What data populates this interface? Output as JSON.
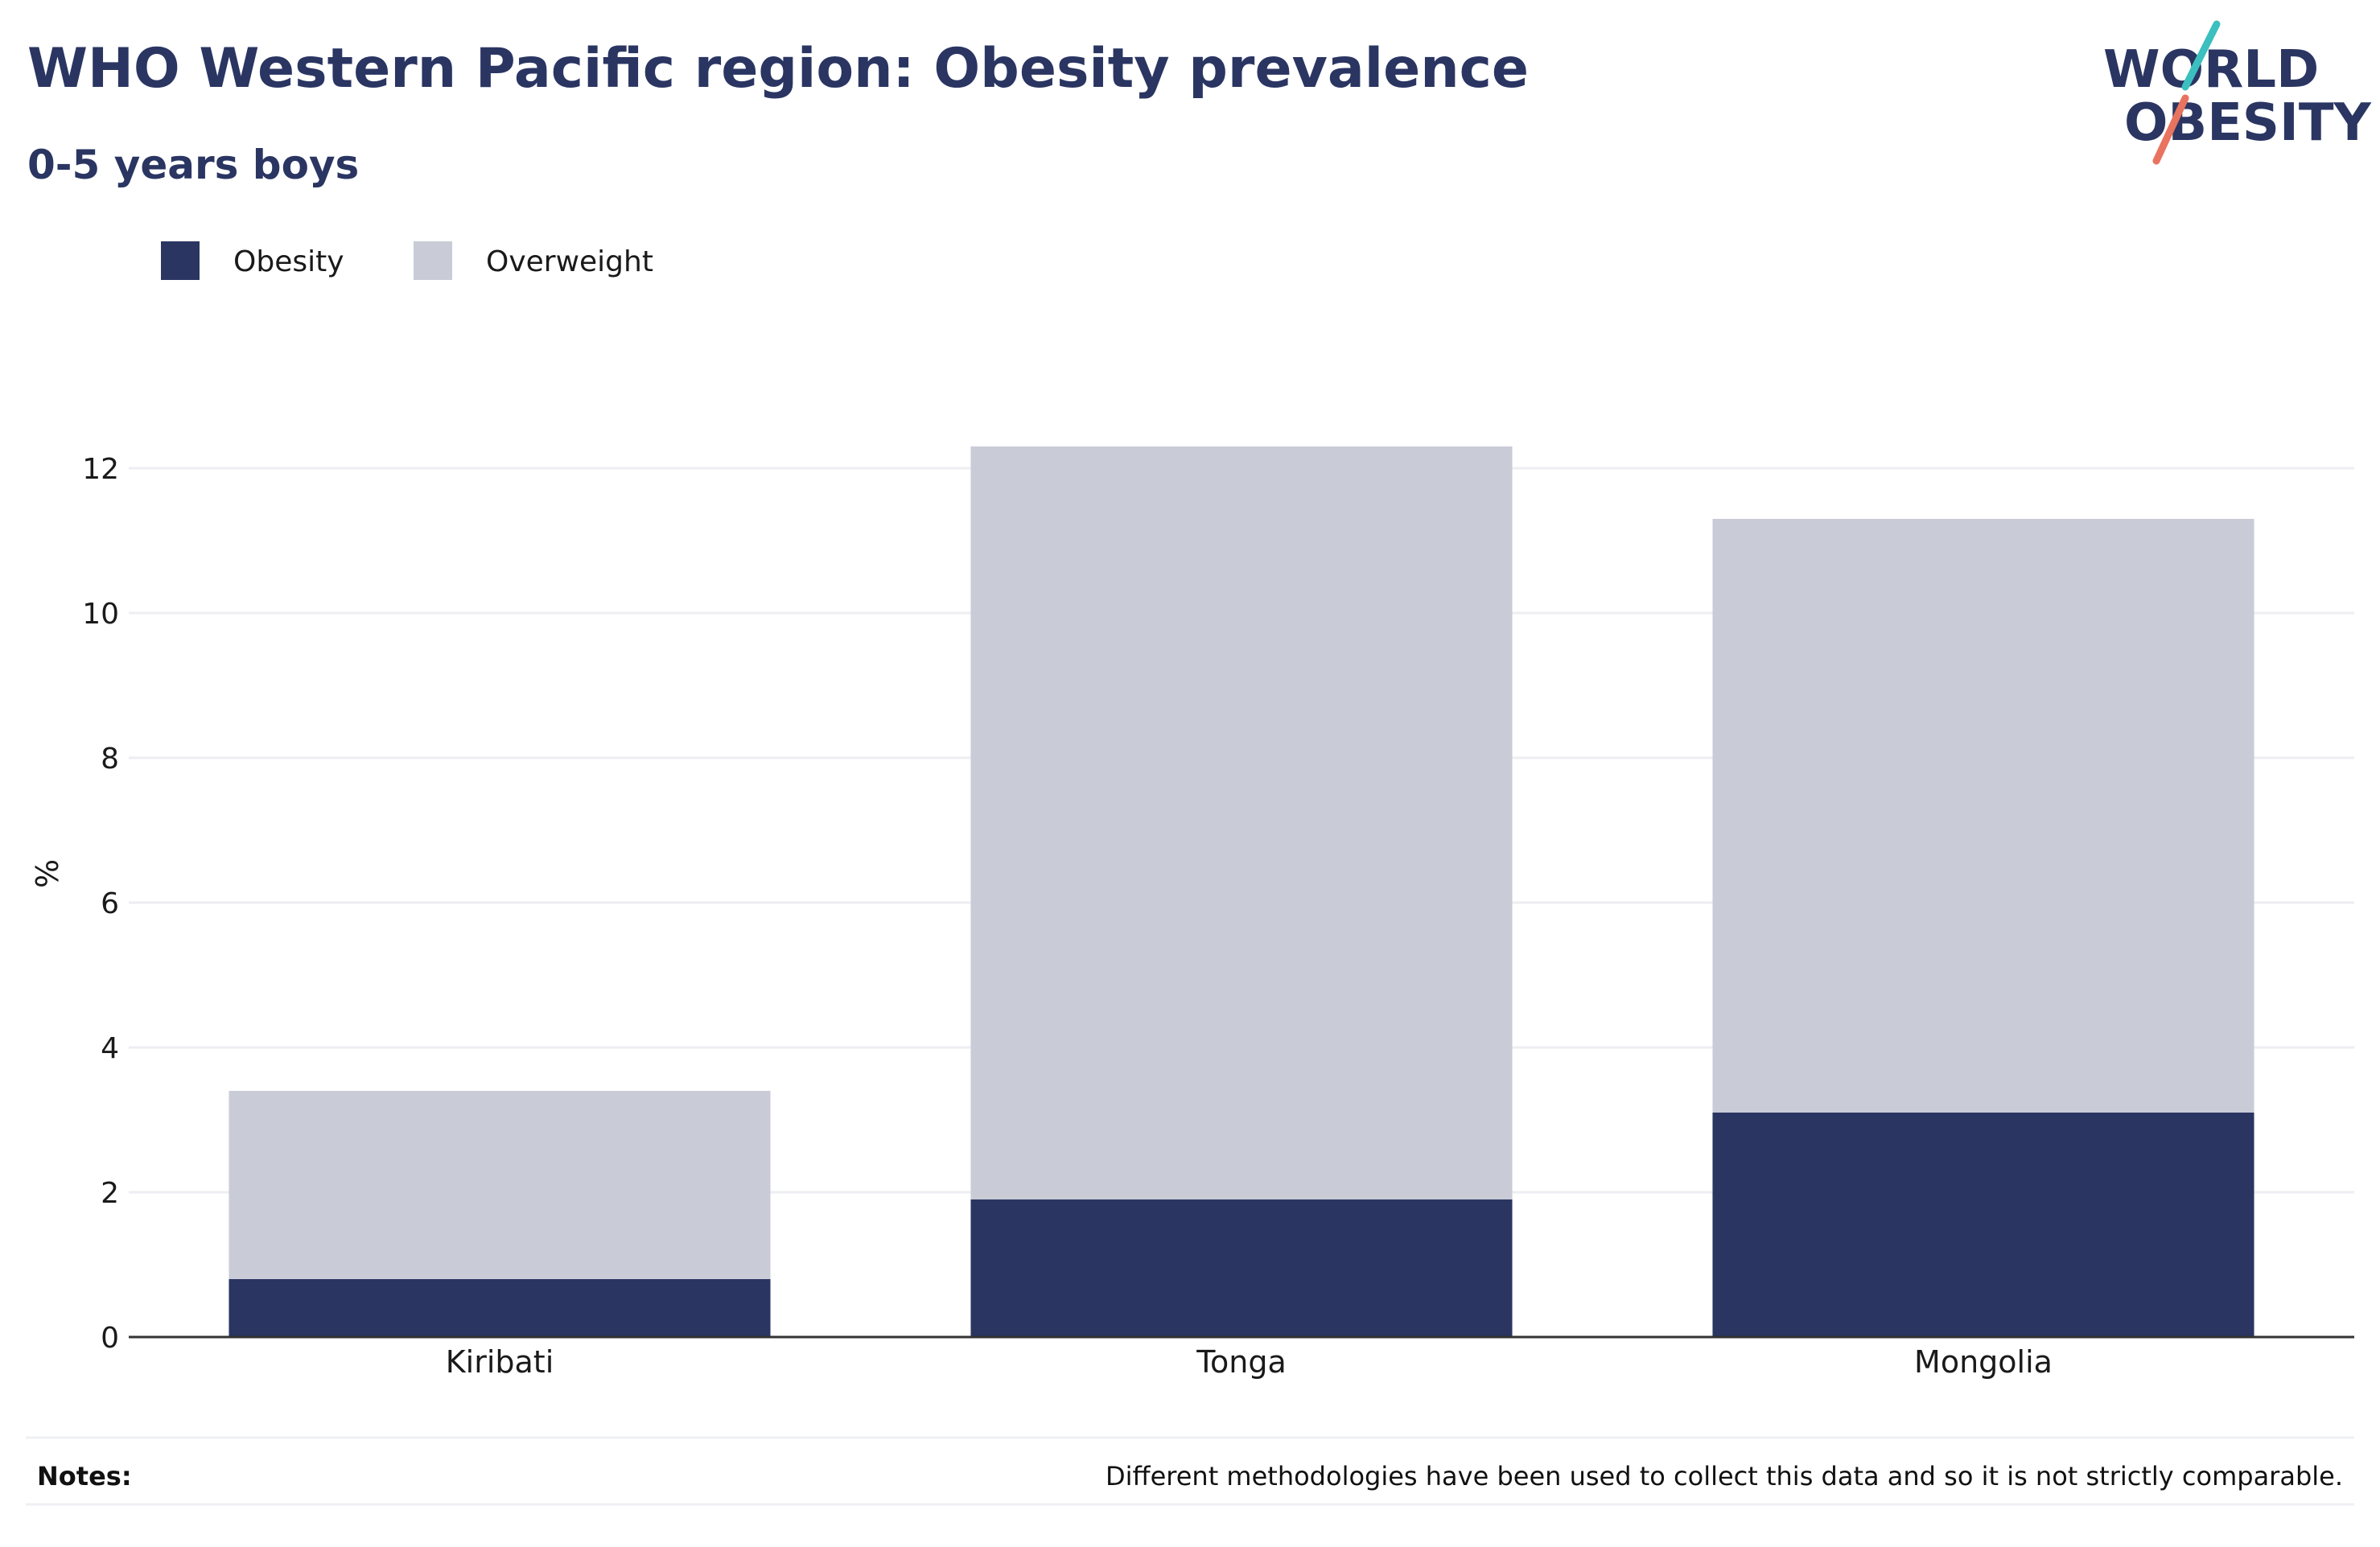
{
  "title": "WHO Western Pacific region: Obesity prevalence",
  "subtitle": "0-5 years boys",
  "logo": {
    "line1": "WORLD",
    "line2": "OBESITY",
    "accent_colors": [
      "#3bbfbf",
      "#e8735f"
    ]
  },
  "notes": {
    "label": "Notes:",
    "text": "Different methodologies have been used to collect this data and so it is not strictly comparable."
  },
  "chart_data": {
    "type": "bar",
    "stacked": true,
    "categories": [
      "Kiribati",
      "Tonga",
      "Mongolia"
    ],
    "series": [
      {
        "name": "Obesity",
        "color": "#2a3562",
        "values": [
          0.8,
          1.9,
          3.1
        ]
      },
      {
        "name": "Overweight",
        "color": "#c9ccd7",
        "values": [
          2.6,
          10.4,
          8.2
        ]
      }
    ],
    "ylabel": "%",
    "ylim": [
      0,
      12.5
    ],
    "yticks": [
      0,
      2,
      4,
      6,
      8,
      10,
      12
    ],
    "grid": true,
    "legend_position": "top-left"
  }
}
